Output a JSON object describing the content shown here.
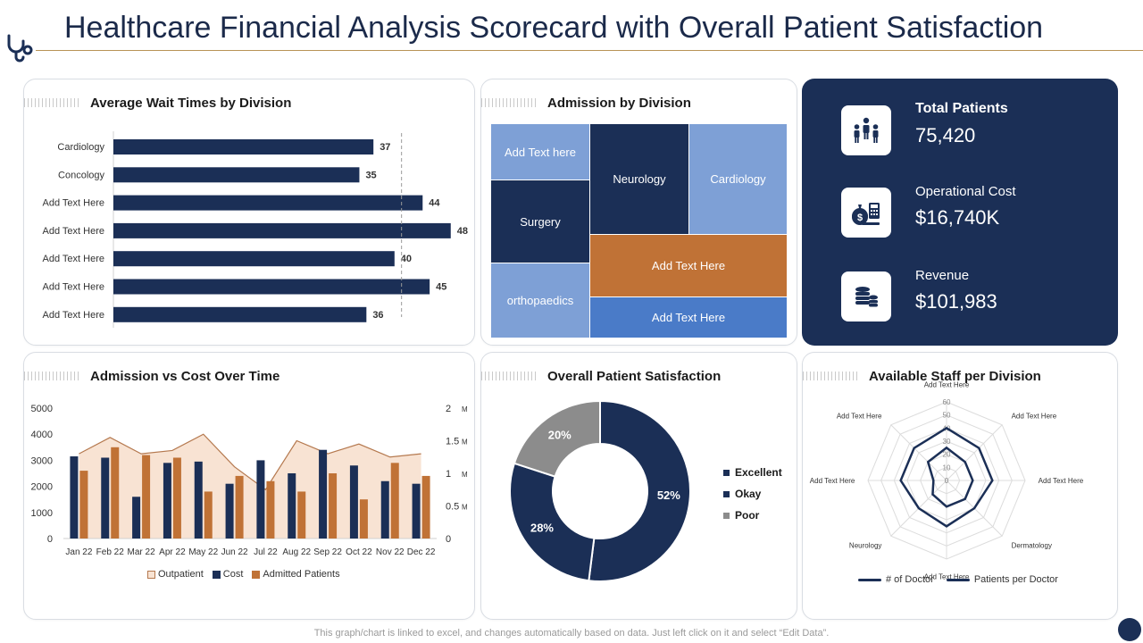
{
  "header": {
    "title": "Healthcare Financial Analysis Scorecard with Overall Patient Satisfaction"
  },
  "colors": {
    "navy": "#1b2f56",
    "orange": "#c07236",
    "peach": "#f8e3d3",
    "peach_line": "#b5794f",
    "gray": "#8c8c8c",
    "light_blue": "#7ea0d6",
    "blue": "#4a7bc8",
    "gold": "#b89456"
  },
  "wait_times": {
    "title": "Average Wait Times by Division"
  },
  "admission_division": {
    "title": "Admission  by Division"
  },
  "admission_cost": {
    "title": "Admission  vs Cost Over Time"
  },
  "satisfaction": {
    "title": "Overall Patient Satisfaction"
  },
  "staff": {
    "title": "Available Staff per Division"
  },
  "kpis": [
    {
      "label": "Total Patients",
      "value": "75,420",
      "icon": "patients-group-icon"
    },
    {
      "label": "Operational Cost",
      "value": "$16,740K",
      "icon": "money-bag-calculator-icon"
    },
    {
      "label": "Revenue",
      "value": "$101,983",
      "icon": "coin-stack-icon"
    }
  ],
  "footer": {
    "note": "This graph/chart is linked to excel, and changes automatically based on data. Just left click on it and select “Edit Data”."
  },
  "chart_data": [
    {
      "type": "bar",
      "title": "Average Wait Times by Division",
      "orientation": "horizontal",
      "categories": [
        "Cardiology",
        "Concology",
        "Add Text Here",
        "Add Text Here",
        "Add Text Here",
        "Add Text Here",
        "Add Text Here"
      ],
      "values": [
        37,
        35,
        44,
        48,
        40,
        45,
        36
      ],
      "reference_line": 41,
      "xlim": [
        0,
        50
      ]
    },
    {
      "type": "treemap",
      "title": "Admission  by Division",
      "cells": [
        {
          "label": "Add Text here",
          "color": "#7ea0d6"
        },
        {
          "label": "Neurology",
          "color": "#1b2f56"
        },
        {
          "label": "Cardiology",
          "color": "#7ea0d6"
        },
        {
          "label": "Surgery",
          "color": "#1b2f56"
        },
        {
          "label": "Add Text Here",
          "color": "#c07236"
        },
        {
          "label": "orthopaedics",
          "color": "#7ea0d6"
        },
        {
          "label": "Add Text Here",
          "color": "#4a7bc8"
        }
      ]
    },
    {
      "type": "bar",
      "title": "Admission  vs Cost Over Time",
      "categories": [
        "Jan 22",
        "Feb 22",
        "Mar 22",
        "Apr 22",
        "May 22",
        "Jun 22",
        "Jul 22",
        "Aug 22",
        "Sep 22",
        "Oct 22",
        "Nov 22",
        "Dec 22"
      ],
      "series": [
        {
          "name": "Outpatient",
          "kind": "area",
          "axis": "right",
          "values": [
            1.3,
            1.55,
            1.3,
            1.35,
            1.6,
            1.1,
            0.75,
            1.5,
            1.3,
            1.45,
            1.25,
            1.3
          ]
        },
        {
          "name": "Cost",
          "kind": "bar",
          "axis": "left",
          "values": [
            3150,
            3100,
            1600,
            2900,
            2950,
            2100,
            3000,
            2500,
            3400,
            2800,
            2200,
            2100
          ]
        },
        {
          "name": "Admitted Patients",
          "kind": "bar",
          "axis": "left",
          "values": [
            2600,
            3500,
            3200,
            3100,
            1800,
            2400,
            2200,
            1800,
            2500,
            1500,
            2900,
            2400
          ]
        }
      ],
      "ylim": [
        0,
        5000
      ],
      "yticks": [
        "5000",
        "4000",
        "3000",
        "2000",
        "1000",
        "0"
      ],
      "y2lim": [
        0,
        2
      ],
      "y2ticks": [
        "2",
        "1.5",
        "1",
        "0.5",
        "0"
      ],
      "y2unit": "M"
    },
    {
      "type": "pie",
      "donut": true,
      "title": "Overall Patient Satisfaction",
      "labels": [
        "Excellent",
        "Okay",
        "Poor"
      ],
      "values": [
        52,
        28,
        20
      ],
      "value_labels": [
        "52%",
        "28%",
        "20%"
      ]
    },
    {
      "type": "radar",
      "title": "Available Staff per Division",
      "axes": [
        "Add Text Here",
        "Add Text Here",
        "Add Text Here",
        "Dermatology",
        "Add Text Here",
        "Neurology",
        "Add Text Here",
        "Add Text Here"
      ],
      "rmax": 60,
      "rticks": [
        "0",
        "10",
        "20",
        "30",
        "40",
        "50",
        "60"
      ],
      "series": [
        {
          "name": "# of Doctor",
          "values": [
            40,
            35,
            35,
            30,
            35,
            30,
            35,
            35
          ]
        },
        {
          "name": "Patients per Doctor",
          "values": [
            25,
            20,
            20,
            20,
            20,
            15,
            10,
            20
          ]
        }
      ]
    }
  ]
}
